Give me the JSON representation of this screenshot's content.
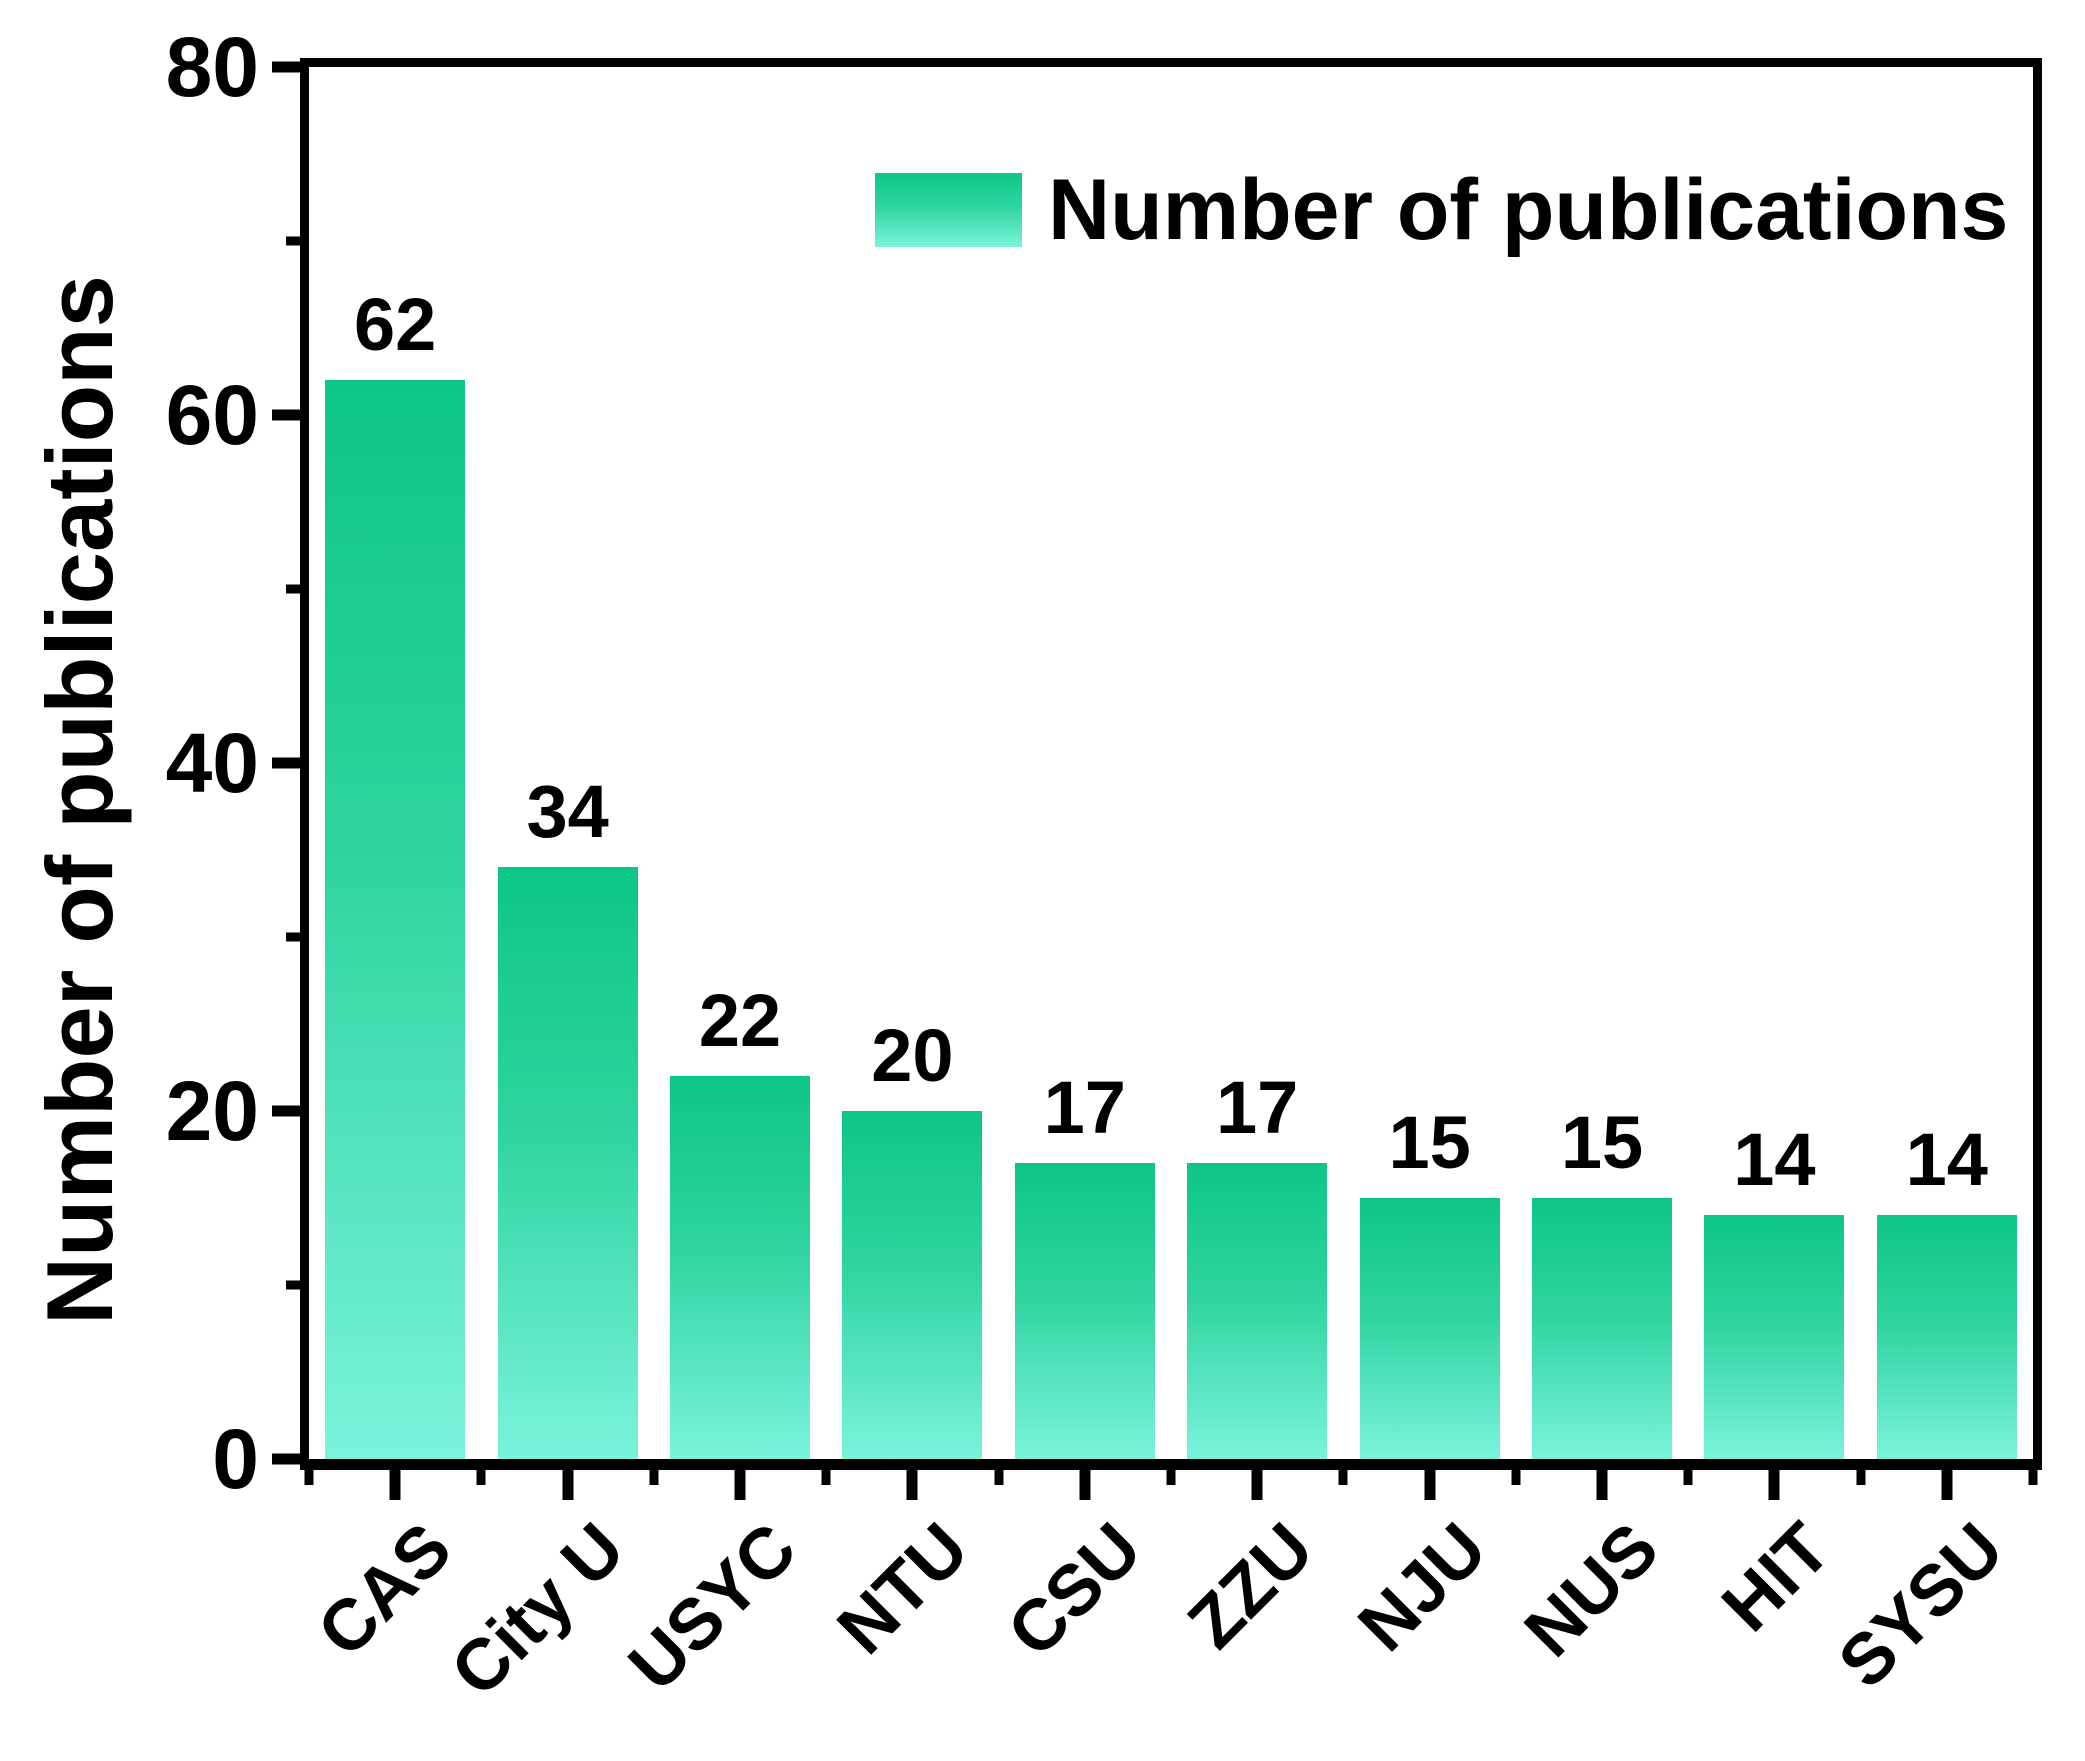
{
  "figure": {
    "y_axis_title": "Number of publications",
    "legend_label": "Number of publications"
  },
  "chart_data": {
    "type": "bar",
    "title": "",
    "categories": [
      "CAS",
      "City U",
      "USYC",
      "NTU",
      "CSU",
      "ZZU",
      "NJU",
      "NUS",
      "HIT",
      "SYSU"
    ],
    "values": [
      62,
      34,
      22,
      20,
      17,
      17,
      15,
      15,
      14,
      14
    ],
    "series": [
      {
        "name": "Number of publications",
        "values": [
          62,
          34,
          22,
          20,
          17,
          17,
          15,
          15,
          14,
          14
        ]
      }
    ],
    "bar_value_labels": [
      "62",
      "34",
      "22",
      "20",
      "17",
      "17",
      "15",
      "15",
      "14",
      "14"
    ],
    "xlabel": "",
    "ylabel": "Number of publications",
    "ylim": [
      0,
      80
    ],
    "yticks_major": [
      0,
      20,
      40,
      60,
      80
    ],
    "yticks_minor": [
      10,
      30,
      50,
      70
    ],
    "grid": false,
    "legend": {
      "label": "Number of publications",
      "position": "top-inside"
    },
    "colors": {
      "bar_gradient_top": "#0dc685",
      "bar_gradient_mid": "#2fd4a0",
      "bar_gradient_bottom": "#7bf3dc",
      "axis": "#000000",
      "text": "#000000"
    }
  }
}
